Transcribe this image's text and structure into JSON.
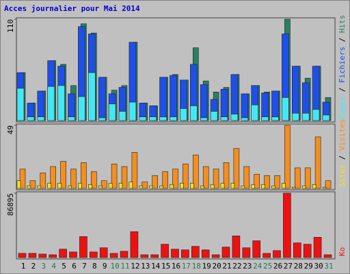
{
  "chart_data": [
    {
      "type": "bar",
      "title": "Acces journalier pour Mai 2014",
      "legend_separator": " / ",
      "categories": [
        "1",
        "2",
        "3",
        "4",
        "5",
        "6",
        "7",
        "8",
        "9",
        "10",
        "11",
        "12",
        "13",
        "14",
        "15",
        "16",
        "17",
        "18",
        "19",
        "20",
        "21",
        "22",
        "23",
        "24",
        "25",
        "26",
        "27",
        "28",
        "29",
        "30",
        "31"
      ],
      "category_colors": [
        "#000000",
        "#000000",
        "#227755",
        "#227755",
        "#000000",
        "#000000",
        "#000000",
        "#000000",
        "#000000",
        "#227755",
        "#227755",
        "#000000",
        "#000000",
        "#000000",
        "#000000",
        "#000000",
        "#227755",
        "#227755",
        "#000000",
        "#000000",
        "#000000",
        "#000000",
        "#000000",
        "#227755",
        "#227755",
        "#000000",
        "#000000",
        "#000000",
        "#000000",
        "#000000",
        "#227755"
      ],
      "ylim": [
        0,
        110
      ],
      "yticks": [
        110
      ],
      "series": [
        {
          "name": "Pages",
          "color": "#44e8f4",
          "values": [
            35,
            4,
            4,
            37,
            38,
            4,
            26,
            52,
            3,
            18,
            10,
            20,
            4,
            4,
            4,
            4,
            13,
            16,
            3,
            10,
            4,
            7,
            3,
            17,
            4,
            4,
            25,
            8,
            8,
            12,
            6
          ]
        },
        {
          "name": "Fichiers",
          "color": "#1e4fe8",
          "values": [
            52,
            19,
            32,
            65,
            59,
            29,
            102,
            94,
            47,
            29,
            36,
            85,
            19,
            16,
            47,
            49,
            44,
            61,
            39,
            23,
            34,
            50,
            29,
            38,
            30,
            32,
            94,
            59,
            41,
            59,
            20
          ]
        },
        {
          "name": "Hits",
          "color": "#2a8060",
          "values": [
            52,
            19,
            32,
            65,
            61,
            38,
            105,
            95,
            47,
            33,
            38,
            85,
            19,
            16,
            47,
            50,
            44,
            79,
            43,
            31,
            36,
            50,
            29,
            38,
            31,
            32,
            110,
            59,
            46,
            59,
            25
          ]
        }
      ]
    },
    {
      "type": "bar",
      "legend_separator": " / ",
      "ylim": [
        0,
        49
      ],
      "yticks": [
        49
      ],
      "series": [
        {
          "name": "Sites",
          "color": "#f4e020",
          "values": [
            6,
            2,
            2,
            4,
            4,
            2,
            4,
            3,
            2,
            4,
            4,
            5,
            2,
            2,
            2,
            3,
            4,
            4,
            2,
            3,
            4,
            4,
            2,
            3,
            3,
            2,
            4,
            1,
            2,
            3,
            1
          ]
        },
        {
          "name": "Visites",
          "color": "#f48e1e",
          "values": [
            15,
            6,
            12,
            17,
            21,
            15,
            20,
            13,
            6,
            19,
            17,
            28,
            5,
            10,
            13,
            15,
            19,
            26,
            17,
            15,
            20,
            31,
            17,
            11,
            10,
            10,
            49,
            16,
            16,
            40,
            6
          ]
        }
      ]
    },
    {
      "type": "bar",
      "ylim": [
        0,
        86895
      ],
      "yticks": [
        86895
      ],
      "series": [
        {
          "name": "Ko",
          "color": "#ee1111",
          "values": [
            5670,
            5670,
            4725,
            3780,
            11340,
            7560,
            28350,
            7560,
            13230,
            5670,
            8505,
            34965,
            3780,
            3780,
            17955,
            11340,
            10395,
            15120,
            10395,
            3780,
            14175,
            29295,
            13230,
            22680,
            5670,
            9450,
            86895,
            19845,
            17955,
            27405,
            3780
          ]
        }
      ]
    }
  ]
}
